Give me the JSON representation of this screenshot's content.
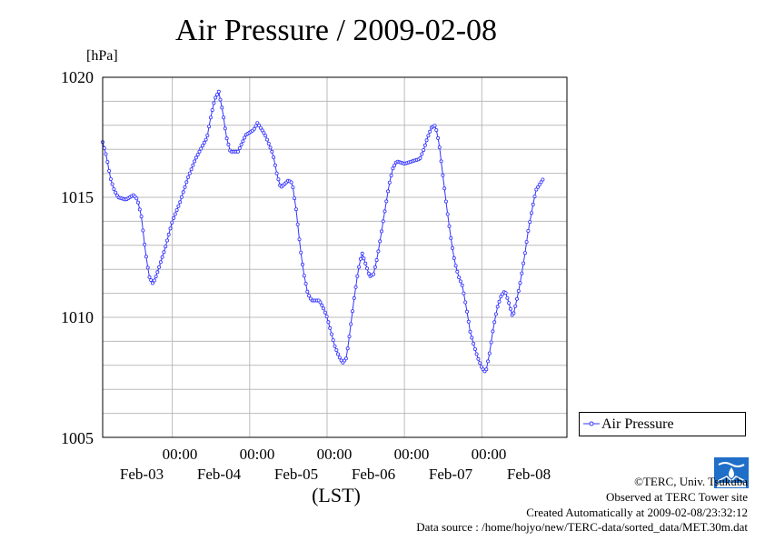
{
  "title": "Air Pressure / 2009-02-08",
  "unit_label": "[hPa]",
  "xlabel": "(LST)",
  "colors": {
    "series": "#3333ff",
    "grid": "#bbbbbb",
    "frame": "#000000"
  },
  "y_ticks": [
    "1020",
    "1015",
    "1010",
    "1005"
  ],
  "x_time_labels": [
    "00:00",
    "00:00",
    "00:00",
    "00:00",
    "00:00"
  ],
  "x_date_labels": [
    "Feb-03",
    "Feb-04",
    "Feb-05",
    "Feb-06",
    "Feb-07",
    "Feb-08"
  ],
  "legend": {
    "label": "Air Pressure",
    "placement": "bottom-right, outside plot"
  },
  "credits": {
    "copyright": "©TERC, Univ. Tsukuba",
    "site": "Observed at TERC Tower site",
    "created": "Created Automatically at 2009-02-08/23:32:12",
    "source": "Data source : /home/hojyo/new/TERC-data/sorted_data/MET.30m.dat"
  },
  "logo_icon": "terc-logo-icon",
  "chart_data": {
    "type": "line",
    "title": "Air Pressure / 2009-02-08",
    "xlabel": "(LST)",
    "ylabel": "[hPa]",
    "x_unit": "days since Feb-03 00:00 (LST)",
    "xlim": [
      -0.9,
      5.1
    ],
    "ylim": [
      1005,
      1020
    ],
    "grid": true,
    "legend_position": "bottom-right",
    "marker": "circle",
    "series": [
      {
        "name": "Air Pressure",
        "anchors": [
          [
            -0.9,
            1017.3
          ],
          [
            -0.85,
            1016.7
          ],
          [
            -0.8,
            1015.8
          ],
          [
            -0.75,
            1015.3
          ],
          [
            -0.7,
            1015.0
          ],
          [
            -0.6,
            1014.9
          ],
          [
            -0.5,
            1015.1
          ],
          [
            -0.45,
            1014.9
          ],
          [
            -0.4,
            1014.2
          ],
          [
            -0.35,
            1012.8
          ],
          [
            -0.3,
            1011.7
          ],
          [
            -0.25,
            1011.4
          ],
          [
            -0.2,
            1011.8
          ],
          [
            -0.1,
            1012.8
          ],
          [
            0.0,
            1014.0
          ],
          [
            0.1,
            1014.8
          ],
          [
            0.2,
            1015.8
          ],
          [
            0.3,
            1016.6
          ],
          [
            0.35,
            1016.9
          ],
          [
            0.45,
            1017.5
          ],
          [
            0.5,
            1018.4
          ],
          [
            0.55,
            1019.1
          ],
          [
            0.6,
            1019.4
          ],
          [
            0.65,
            1018.6
          ],
          [
            0.7,
            1017.5
          ],
          [
            0.75,
            1016.9
          ],
          [
            0.85,
            1016.9
          ],
          [
            0.95,
            1017.6
          ],
          [
            1.05,
            1017.8
          ],
          [
            1.1,
            1018.1
          ],
          [
            1.2,
            1017.6
          ],
          [
            1.3,
            1016.8
          ],
          [
            1.35,
            1016.0
          ],
          [
            1.4,
            1015.4
          ],
          [
            1.5,
            1015.7
          ],
          [
            1.55,
            1015.6
          ],
          [
            1.6,
            1014.5
          ],
          [
            1.65,
            1013.0
          ],
          [
            1.7,
            1011.8
          ],
          [
            1.75,
            1011.0
          ],
          [
            1.8,
            1010.7
          ],
          [
            1.9,
            1010.7
          ],
          [
            1.95,
            1010.4
          ],
          [
            2.0,
            1010.0
          ],
          [
            2.05,
            1009.4
          ],
          [
            2.1,
            1008.8
          ],
          [
            2.15,
            1008.4
          ],
          [
            2.2,
            1008.1
          ],
          [
            2.25,
            1008.3
          ],
          [
            2.3,
            1009.5
          ],
          [
            2.35,
            1010.8
          ],
          [
            2.4,
            1011.9
          ],
          [
            2.45,
            1012.7
          ],
          [
            2.5,
            1012.2
          ],
          [
            2.55,
            1011.7
          ],
          [
            2.6,
            1011.8
          ],
          [
            2.65,
            1012.5
          ],
          [
            2.7,
            1013.5
          ],
          [
            2.75,
            1014.5
          ],
          [
            2.8,
            1015.5
          ],
          [
            2.85,
            1016.2
          ],
          [
            2.9,
            1016.5
          ],
          [
            3.0,
            1016.4
          ],
          [
            3.1,
            1016.5
          ],
          [
            3.2,
            1016.6
          ],
          [
            3.25,
            1017.0
          ],
          [
            3.3,
            1017.5
          ],
          [
            3.35,
            1017.9
          ],
          [
            3.4,
            1018.0
          ],
          [
            3.45,
            1017.2
          ],
          [
            3.5,
            1015.8
          ],
          [
            3.55,
            1014.5
          ],
          [
            3.6,
            1013.3
          ],
          [
            3.65,
            1012.3
          ],
          [
            3.7,
            1011.7
          ],
          [
            3.75,
            1011.3
          ],
          [
            3.8,
            1010.4
          ],
          [
            3.85,
            1009.4
          ],
          [
            3.9,
            1008.8
          ],
          [
            3.95,
            1008.3
          ],
          [
            4.0,
            1007.9
          ],
          [
            4.05,
            1007.7
          ],
          [
            4.1,
            1008.5
          ],
          [
            4.15,
            1009.6
          ],
          [
            4.2,
            1010.4
          ],
          [
            4.25,
            1010.9
          ],
          [
            4.3,
            1011.1
          ],
          [
            4.35,
            1010.6
          ],
          [
            4.4,
            1010.0
          ],
          [
            4.45,
            1010.7
          ],
          [
            4.5,
            1011.5
          ],
          [
            4.55,
            1012.5
          ],
          [
            4.6,
            1013.6
          ],
          [
            4.65,
            1014.5
          ],
          [
            4.7,
            1015.3
          ],
          [
            4.8,
            1015.8
          ]
        ]
      }
    ]
  }
}
